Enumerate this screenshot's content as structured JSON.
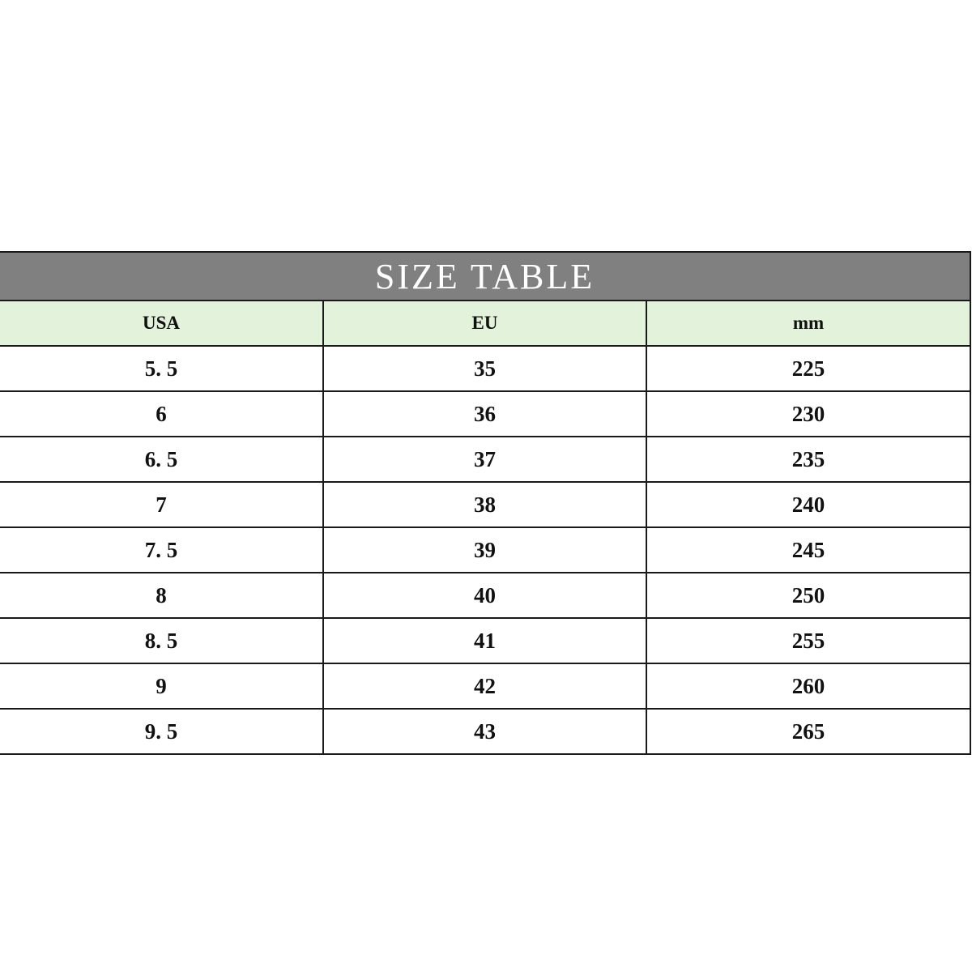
{
  "title": "SIZE TABLE",
  "headers": [
    "USA",
    "EU",
    "mm"
  ],
  "colors": {
    "title_bg": "#808080",
    "header_bg": "#e3f2da"
  },
  "rows": [
    [
      "5. 5",
      "35",
      "225"
    ],
    [
      "6",
      "36",
      "230"
    ],
    [
      "6. 5",
      "37",
      "235"
    ],
    [
      "7",
      "38",
      "240"
    ],
    [
      "7. 5",
      "39",
      "245"
    ],
    [
      "8",
      "40",
      "250"
    ],
    [
      "8. 5",
      "41",
      "255"
    ],
    [
      "9",
      "42",
      "260"
    ],
    [
      "9. 5",
      "43",
      "265"
    ]
  ]
}
